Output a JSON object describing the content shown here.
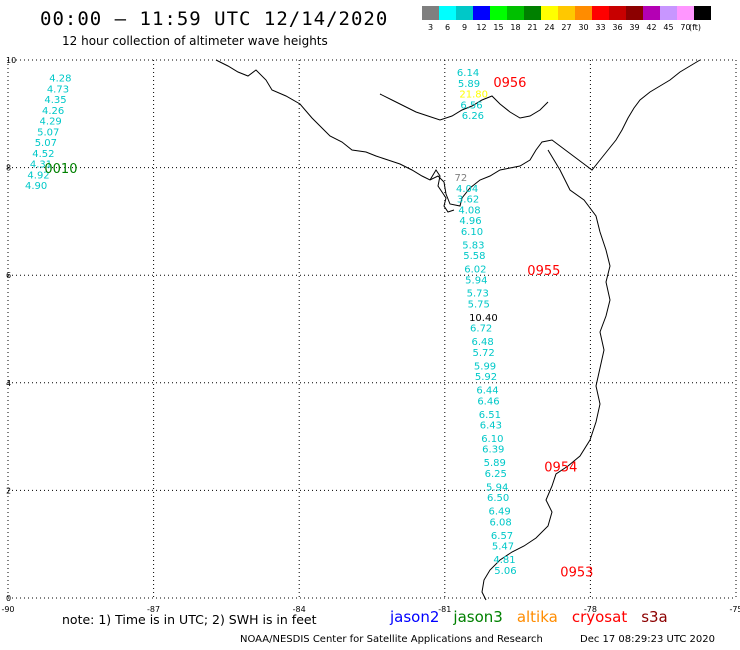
{
  "header": {
    "title": "00:00 – 11:59 UTC 12/14/2020",
    "subtitle": "12 hour collection of altimeter wave heights"
  },
  "legend": {
    "unit": "(ft)",
    "bins": [
      {
        "label": "3",
        "color": "#7f7f7f"
      },
      {
        "label": "6",
        "color": "#00ffff"
      },
      {
        "label": "9",
        "color": "#00c8c8"
      },
      {
        "label": "12",
        "color": "#0000ff"
      },
      {
        "label": "15",
        "color": "#00ff00"
      },
      {
        "label": "18",
        "color": "#00c000"
      },
      {
        "label": "21",
        "color": "#008000"
      },
      {
        "label": "24",
        "color": "#ffff00"
      },
      {
        "label": "27",
        "color": "#ffc800"
      },
      {
        "label": "30",
        "color": "#ff8c00"
      },
      {
        "label": "33",
        "color": "#ff0000"
      },
      {
        "label": "36",
        "color": "#c80000"
      },
      {
        "label": "39",
        "color": "#8c0000"
      },
      {
        "label": "42",
        "color": "#b400b4"
      },
      {
        "label": "45",
        "color": "#c896ff"
      },
      {
        "label": "70",
        "color": "#ff96ff"
      },
      {
        "label": "",
        "color": "#000000"
      }
    ]
  },
  "map": {
    "lon_range": [
      -90,
      -75
    ],
    "lat_range": [
      0,
      10
    ],
    "lon_ticks": [
      "-90",
      "-87",
      "-84",
      "-81",
      "-78",
      "-75"
    ],
    "lat_ticks": [
      "0",
      "2",
      "4",
      "6",
      "8",
      "10"
    ],
    "gridlines": true
  },
  "tracks": [
    {
      "id": "west",
      "time_label": "0010",
      "time_color": "#008000",
      "time_lat": 7.9,
      "time_lon": -89.25,
      "points": [
        {
          "lat": 9.6,
          "lon": -89.15,
          "value": "4.28",
          "color": "#00c8c8"
        },
        {
          "lat": 9.4,
          "lon": -89.2,
          "value": "4.73",
          "color": "#00c8c8"
        },
        {
          "lat": 9.2,
          "lon": -89.25,
          "value": "4.35",
          "color": "#00c8c8"
        },
        {
          "lat": 9.0,
          "lon": -89.3,
          "value": "4.26",
          "color": "#00c8c8"
        },
        {
          "lat": 8.8,
          "lon": -89.35,
          "value": "4.29",
          "color": "#00c8c8"
        },
        {
          "lat": 8.6,
          "lon": -89.4,
          "value": "5.07",
          "color": "#00c8c8"
        },
        {
          "lat": 8.4,
          "lon": -89.45,
          "value": "5.07",
          "color": "#00c8c8"
        },
        {
          "lat": 8.2,
          "lon": -89.5,
          "value": "4.52",
          "color": "#00c8c8"
        },
        {
          "lat": 8.0,
          "lon": -89.55,
          "value": "4.31",
          "color": "#00c8c8"
        },
        {
          "lat": 7.8,
          "lon": -89.6,
          "value": "4.92",
          "color": "#00c8c8"
        },
        {
          "lat": 7.6,
          "lon": -89.65,
          "value": "4.90",
          "color": "#00c8c8"
        }
      ]
    },
    {
      "id": "north",
      "time_label": "0956",
      "time_color": "#ff0000",
      "time_lat": 9.5,
      "time_lon": -80.0,
      "points": [
        {
          "lat": 9.7,
          "lon": -80.75,
          "value": "6.14",
          "color": "#00c8c8"
        },
        {
          "lat": 9.5,
          "lon": -80.73,
          "value": "5.89",
          "color": "#00c8c8"
        },
        {
          "lat": 9.3,
          "lon": -80.7,
          "value": "21.80",
          "color": "#ffff00"
        },
        {
          "lat": 9.1,
          "lon": -80.68,
          "value": "6.56",
          "color": "#00c8c8"
        },
        {
          "lat": 8.9,
          "lon": -80.65,
          "value": "6.26",
          "color": "#00c8c8"
        }
      ]
    },
    {
      "id": "east",
      "time_label": "0955",
      "time_color": "#ff0000",
      "time_lat": 6.0,
      "time_lon": -79.3,
      "points": [
        {
          "lat": 7.75,
          "lon": -80.8,
          "value": "72",
          "color": "#7f7f7f"
        },
        {
          "lat": 7.55,
          "lon": -80.77,
          "value": "4.04",
          "color": "#00c8c8"
        },
        {
          "lat": 7.35,
          "lon": -80.75,
          "value": "3.62",
          "color": "#00c8c8"
        },
        {
          "lat": 7.15,
          "lon": -80.72,
          "value": "4.08",
          "color": "#00c8c8"
        },
        {
          "lat": 6.95,
          "lon": -80.7,
          "value": "4.96",
          "color": "#00c8c8"
        },
        {
          "lat": 6.75,
          "lon": -80.67,
          "value": "6.10",
          "color": "#00c8c8"
        },
        {
          "lat": 6.5,
          "lon": -80.64,
          "value": "5.83",
          "color": "#00c8c8"
        },
        {
          "lat": 6.3,
          "lon": -80.62,
          "value": "5.58",
          "color": "#00c8c8"
        },
        {
          "lat": 6.05,
          "lon": -80.6,
          "value": "6.02",
          "color": "#00c8c8"
        },
        {
          "lat": 5.85,
          "lon": -80.58,
          "value": "5.94",
          "color": "#00c8c8"
        },
        {
          "lat": 5.6,
          "lon": -80.55,
          "value": "5.73",
          "color": "#00c8c8"
        },
        {
          "lat": 5.4,
          "lon": -80.53,
          "value": "5.75",
          "color": "#00c8c8"
        },
        {
          "lat": 5.15,
          "lon": -80.5,
          "value": "10.40",
          "color": "#000000"
        },
        {
          "lat": 4.95,
          "lon": -80.48,
          "value": "6.72",
          "color": "#00c8c8"
        },
        {
          "lat": 4.7,
          "lon": -80.45,
          "value": "6.48",
          "color": "#00c8c8"
        },
        {
          "lat": 4.5,
          "lon": -80.43,
          "value": "5.72",
          "color": "#00c8c8"
        },
        {
          "lat": 4.25,
          "lon": -80.4,
          "value": "5.99",
          "color": "#00c8c8"
        },
        {
          "lat": 4.05,
          "lon": -80.38,
          "value": "5.92",
          "color": "#00c8c8"
        },
        {
          "lat": 3.8,
          "lon": -80.35,
          "value": "6.44",
          "color": "#00c8c8"
        },
        {
          "lat": 3.6,
          "lon": -80.33,
          "value": "6.46",
          "color": "#00c8c8"
        },
        {
          "lat": 3.35,
          "lon": -80.3,
          "value": "6.51",
          "color": "#00c8c8"
        },
        {
          "lat": 3.15,
          "lon": -80.28,
          "value": "6.43",
          "color": "#00c8c8"
        }
      ]
    },
    {
      "id": "south",
      "time_label": "0954",
      "time_color": "#ff0000",
      "time_lat": 2.35,
      "time_lon": -78.95,
      "points": [
        {
          "lat": 2.9,
          "lon": -80.25,
          "value": "6.10",
          "color": "#00c8c8"
        },
        {
          "lat": 2.7,
          "lon": -80.23,
          "value": "6.39",
          "color": "#00c8c8"
        },
        {
          "lat": 2.45,
          "lon": -80.2,
          "value": "5.89",
          "color": "#00c8c8"
        },
        {
          "lat": 2.25,
          "lon": -80.18,
          "value": "6.25",
          "color": "#00c8c8"
        },
        {
          "lat": 2.0,
          "lon": -80.15,
          "value": "5.94",
          "color": "#00c8c8"
        },
        {
          "lat": 1.8,
          "lon": -80.13,
          "value": "6.50",
          "color": "#00c8c8"
        },
        {
          "lat": 1.55,
          "lon": -80.1,
          "value": "6.49",
          "color": "#00c8c8"
        },
        {
          "lat": 1.35,
          "lon": -80.08,
          "value": "6.08",
          "color": "#00c8c8"
        },
        {
          "lat": 1.1,
          "lon": -80.05,
          "value": "6.57",
          "color": "#00c8c8"
        },
        {
          "lat": 0.9,
          "lon": -80.03,
          "value": "5.47",
          "color": "#00c8c8"
        },
        {
          "lat": 0.65,
          "lon": -80.0,
          "value": "4.81",
          "color": "#00c8c8"
        },
        {
          "lat": 0.45,
          "lon": -79.98,
          "value": "5.06",
          "color": "#00c8c8"
        }
      ]
    },
    {
      "id": "equator",
      "time_label": "0953",
      "time_color": "#ff0000",
      "time_lat": 0.4,
      "time_lon": -78.62,
      "points": []
    }
  ],
  "footer": {
    "note": "note: 1) Time is in UTC; 2) SWH is in feet",
    "satellites": [
      {
        "name": "jason2",
        "color": "#0000ff"
      },
      {
        "name": "jason3",
        "color": "#008000"
      },
      {
        "name": "altika",
        "color": "#ff8c00"
      },
      {
        "name": "cryosat",
        "color": "#ff0000"
      },
      {
        "name": "s3a",
        "color": "#8c0000"
      }
    ],
    "credit": "NOAA/NESDIS Center for Satellite Applications and Research",
    "timestamp": "Dec 17 08:29:23 UTC 2020"
  }
}
